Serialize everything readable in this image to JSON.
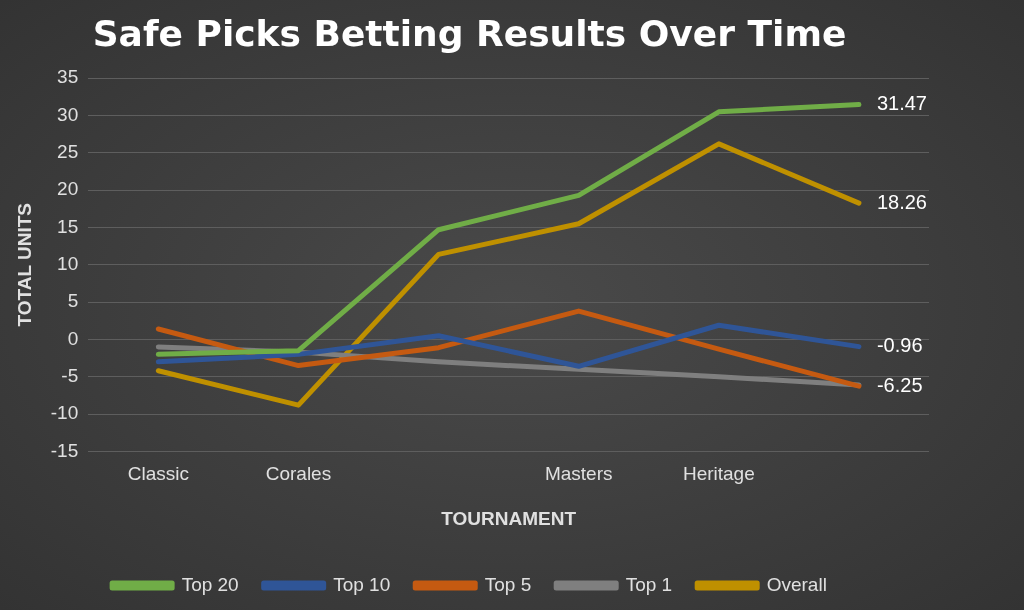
{
  "chart_data": {
    "type": "line",
    "title": "Safe Picks Betting Results Over Time",
    "xlabel": "TOURNAMENT",
    "ylabel": "TOTAL UNITS",
    "categories": [
      "Classic",
      "Corales",
      null,
      "Masters",
      "Heritage",
      null
    ],
    "ylim": [
      -15,
      35
    ],
    "yticks": [
      -15,
      -10,
      -5,
      0,
      5,
      10,
      15,
      20,
      25,
      30,
      35
    ],
    "grid": "y",
    "legend": "bottom",
    "marker": "none",
    "line_style": "solid",
    "series": [
      {
        "name": "Top 20",
        "color": "#70ad47",
        "values": [
          -2,
          -1.5,
          14.7,
          19.3,
          30.5,
          31.47
        ],
        "value_labels": [
          null,
          null,
          null,
          null,
          null,
          "31.47"
        ]
      },
      {
        "name": "Top 10",
        "color": "#2f5597",
        "values": [
          -3,
          -2,
          0.5,
          -3.6,
          1.9,
          -0.96
        ],
        "value_labels": [
          null,
          null,
          null,
          null,
          null,
          "-0.96"
        ]
      },
      {
        "name": "Top 5",
        "color": "#c55a11",
        "values": [
          1.4,
          -3.5,
          -1.1,
          3.8,
          -1.3,
          -6.25
        ],
        "value_labels": [
          null,
          null,
          null,
          null,
          null,
          "-6.25"
        ]
      },
      {
        "name": "Top 1",
        "color": "#7f7f7f",
        "values": [
          -1,
          -1.7,
          -3,
          -4,
          -5,
          -6.1
        ]
      },
      {
        "name": "Overall",
        "color": "#bf9000",
        "values": [
          -4.2,
          -8.8,
          11.4,
          15.5,
          26.2,
          18.26
        ],
        "value_labels": [
          null,
          null,
          null,
          null,
          null,
          "18.26"
        ]
      }
    ]
  }
}
